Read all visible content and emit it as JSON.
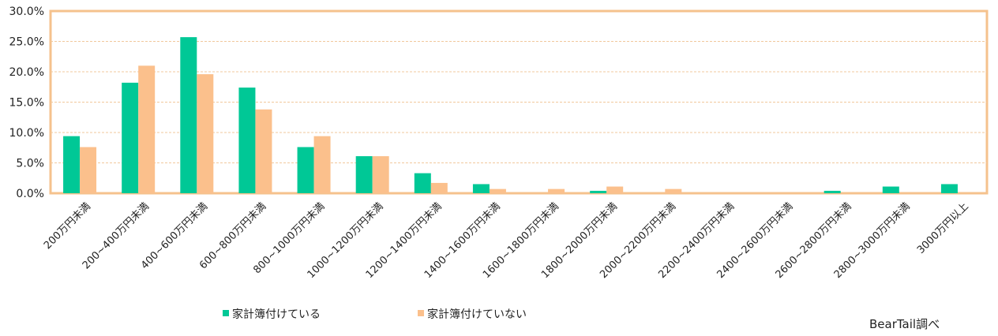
{
  "chart_data": {
    "type": "bar",
    "categories": [
      "200万円未満",
      "200~400万円未満",
      "400~600万円未満",
      "600~800万円未満",
      "800~1000万円未満",
      "1000~1200万円未満",
      "1200~1400万円未満",
      "1400~1600万円未満",
      "1600~1800万円未満",
      "1800~2000万円未満",
      "2000~2200万円未満",
      "2200~2400万円未満",
      "2400~2600万円未満",
      "2600~2800万円未満",
      "2800~3000万円未満",
      "3000万円以上"
    ],
    "series": [
      {
        "name": "家計簿付けている",
        "color": "#00c896",
        "values": [
          9.4,
          18.2,
          25.7,
          17.4,
          7.6,
          6.1,
          3.3,
          1.5,
          0.0,
          0.4,
          0.0,
          0.0,
          0.0,
          0.4,
          1.1,
          1.5
        ]
      },
      {
        "name": "家計簿付けていない",
        "color": "#fbc08c",
        "values": [
          7.6,
          21.0,
          19.6,
          13.8,
          9.4,
          6.1,
          1.7,
          0.7,
          0.7,
          1.1,
          0.7,
          0.0,
          0.0,
          0.0,
          0.0,
          0.0
        ]
      }
    ],
    "yticks": [
      "0.0%",
      "5.0%",
      "10.0%",
      "15.0%",
      "20.0%",
      "25.0%",
      "30.0%"
    ],
    "ylim": [
      0,
      30
    ],
    "grid": true,
    "legend_position": "bottom-left",
    "frame_color": "#f5c28d",
    "grid_color": "#f1c89c"
  },
  "credit": "BearTail調べ"
}
